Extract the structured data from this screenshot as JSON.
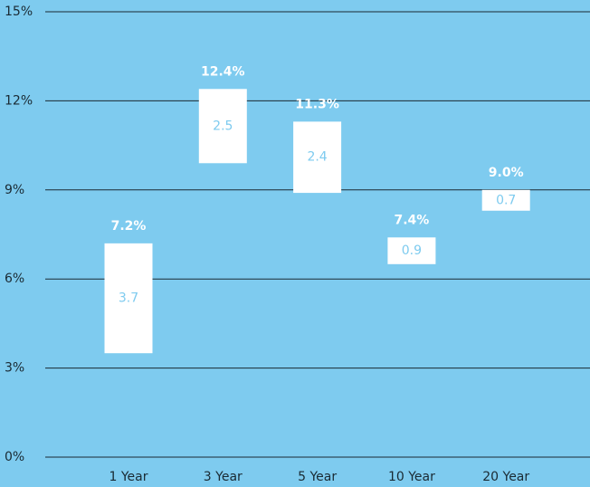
{
  "chart_data": {
    "type": "floating_bar",
    "categories": [
      "1 Year",
      "3 Year",
      "5 Year",
      "10 Year",
      "20 Year"
    ],
    "values": [
      7.2,
      12.4,
      11.3,
      7.4,
      9.0
    ],
    "value_labels": [
      "7.2%",
      "12.4%",
      "11.3%",
      "7.4%",
      "9.0%"
    ],
    "spans": [
      3.7,
      2.5,
      2.4,
      0.9,
      0.7
    ],
    "color": "#ffffff",
    "background": "#7ecbef",
    "ylim": [
      0,
      15
    ],
    "yticks": [
      {
        "value": 0,
        "label": "0%"
      },
      {
        "value": 3,
        "label": "3%"
      },
      {
        "value": 6,
        "label": "6%"
      },
      {
        "value": 9,
        "label": "9%"
      },
      {
        "value": 12,
        "label": "12%"
      },
      {
        "value": 15,
        "label": "15%"
      }
    ],
    "grid": true
  }
}
